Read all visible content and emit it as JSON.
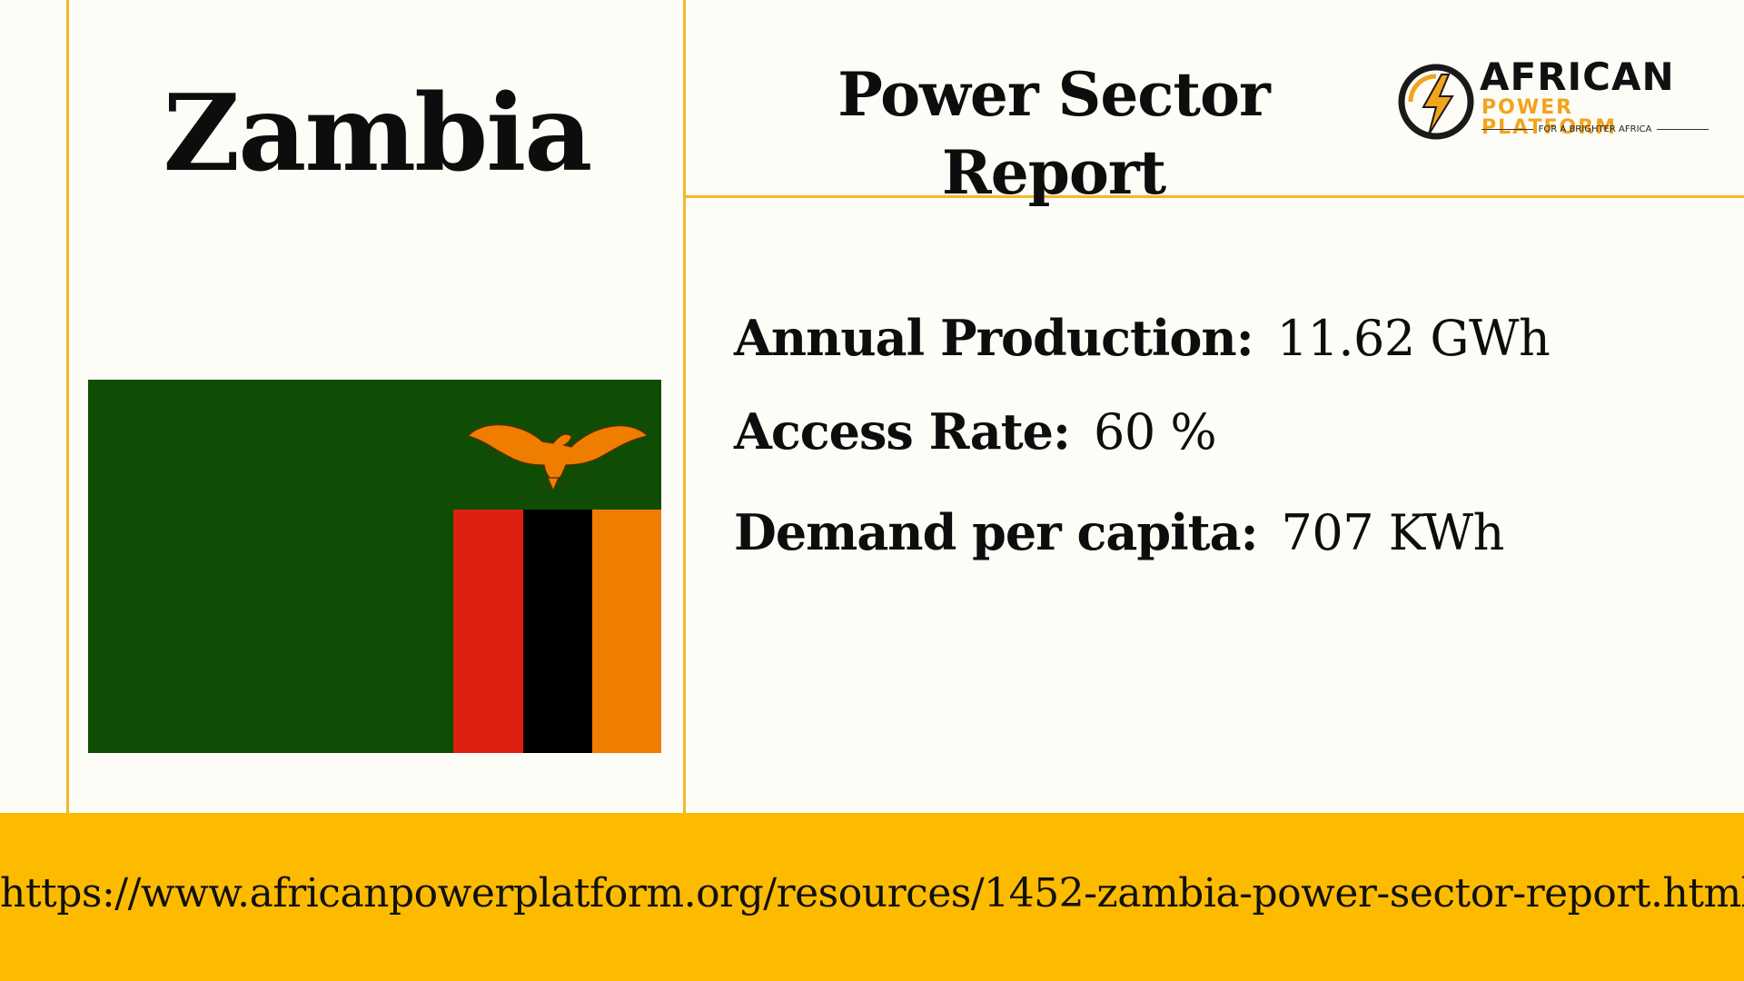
{
  "country": "Zambia",
  "report_title": "Power Sector Report",
  "logo": {
    "name": "AFRICAN",
    "subtitle": "POWER PLATFORM",
    "tagline": "FOR A BRIGHTER AFRICA",
    "icon": "lightning-bolt-icon"
  },
  "flag": {
    "name": "zambia-flag",
    "colors": {
      "field": "#0f4d04",
      "stripe_red": "#de2010",
      "stripe_black": "#000000",
      "stripe_orange": "#ef7d00",
      "eagle": "#ef7d00"
    }
  },
  "stats": [
    {
      "label": "Annual Production:",
      "value": "11.62 GWh"
    },
    {
      "label": "Access Rate:",
      "value": "60 %"
    },
    {
      "label": "Demand per capita:",
      "value": "707 KWh"
    }
  ],
  "footer": {
    "url": "https://www.africanpowerplatform.org/resources/1452-zambia-power-sector-report.html"
  },
  "colors": {
    "background": "#fdfcf7",
    "accent_line": "#f2b829",
    "footer": "#fdbb00",
    "logo_orange": "#f2a41c"
  }
}
